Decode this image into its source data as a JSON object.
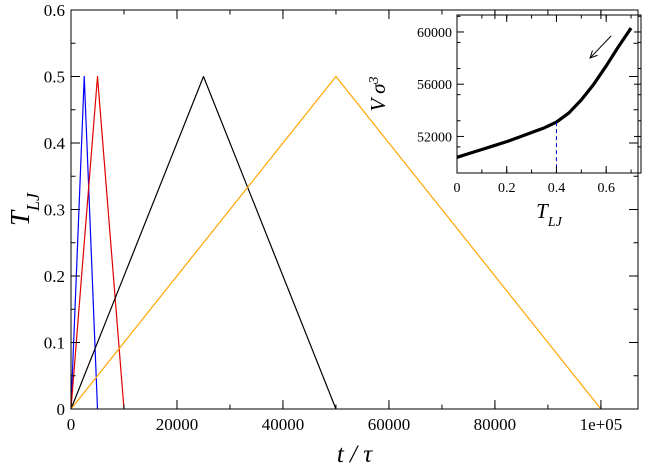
{
  "chart_data": [
    {
      "type": "line",
      "xlabel": "t / τ",
      "ylabel": "T_LJ",
      "xlim": [
        0,
        107000
      ],
      "ylim": [
        0,
        0.6
      ],
      "xticks": [
        0,
        20000,
        40000,
        60000,
        80000,
        100000
      ],
      "xtick_labels": [
        "0",
        "20000",
        "40000",
        "60000",
        "80000",
        "1e+05"
      ],
      "yticks": [
        0,
        0.1,
        0.2,
        0.3,
        0.4,
        0.5,
        0.6
      ],
      "ytick_labels": [
        "0",
        "0.1",
        "0.2",
        "0.3",
        "0.4",
        "0.5",
        "0.6"
      ],
      "grid": false,
      "series": [
        {
          "color": "#0000ff",
          "x": [
            0,
            2500,
            5000
          ],
          "y": [
            0,
            0.5,
            0
          ]
        },
        {
          "color": "#e00000",
          "x": [
            0,
            5000,
            10000
          ],
          "y": [
            0,
            0.5,
            0
          ]
        },
        {
          "color": "#000000",
          "x": [
            0,
            25000,
            50000
          ],
          "y": [
            0,
            0.5,
            0
          ]
        },
        {
          "color": "#ffa500",
          "x": [
            0,
            50000,
            100000
          ],
          "y": [
            0,
            0.5,
            0
          ]
        }
      ]
    },
    {
      "type": "line",
      "xlabel": "T_LJ",
      "ylabel": "V σ³",
      "xlim": [
        0,
        0.74
      ],
      "ylim": [
        49200,
        61300
      ],
      "xticks": [
        0,
        0.2,
        0.4,
        0.6
      ],
      "xtick_labels": [
        "0",
        "0.2",
        "0.4",
        "0.6"
      ],
      "yticks": [
        52000,
        56000,
        60000
      ],
      "ytick_labels": [
        "52000",
        "56000",
        "60000"
      ],
      "grid": false,
      "annotations": [
        {
          "type": "arrow",
          "direction": "decreasing temperature",
          "from": [
            0.62,
            59700
          ],
          "to": [
            0.535,
            58000
          ]
        },
        {
          "type": "vline",
          "x": 0.4,
          "color": "#0000cc",
          "style": "dashed"
        }
      ],
      "series": [
        {
          "color": "#000000",
          "x": [
            0.0,
            0.05,
            0.1,
            0.15,
            0.2,
            0.25,
            0.3,
            0.35,
            0.4,
            0.45,
            0.5,
            0.55,
            0.6,
            0.65,
            0.7
          ],
          "y": [
            50400,
            50700,
            51000,
            51300,
            51600,
            51950,
            52300,
            52650,
            53100,
            53800,
            54800,
            56000,
            57400,
            58900,
            60300
          ]
        }
      ]
    }
  ]
}
